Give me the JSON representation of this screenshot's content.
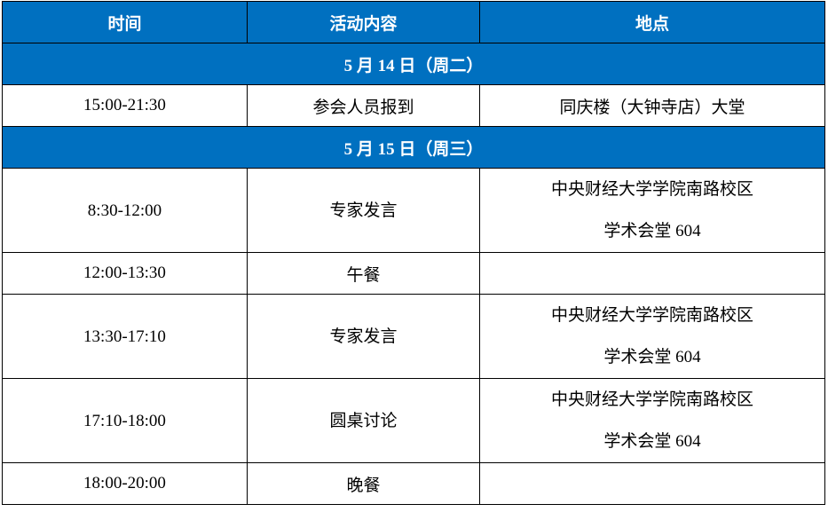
{
  "header": [
    "时间",
    "活动内容",
    "地点"
  ],
  "sections": [
    {
      "date": "5 月 14 日（周二）",
      "rows": [
        {
          "time": "15:00-21:30",
          "activity": "参会人员报到",
          "location": [
            "同庆楼（大钟寺店）大堂"
          ]
        }
      ]
    },
    {
      "date": "5 月 15 日（周三）",
      "rows": [
        {
          "time": "8:30-12:00",
          "activity": "专家发言",
          "location": [
            "中央财经大学学院南路校区",
            "学术会堂 604"
          ]
        },
        {
          "time": "12:00-13:30",
          "activity": "午餐",
          "location": []
        },
        {
          "time": "13:30-17:10",
          "activity": "专家发言",
          "location": [
            "中央财经大学学院南路校区",
            "学术会堂 604"
          ]
        },
        {
          "time": "17:10-18:00",
          "activity": "圆桌讨论",
          "location": [
            "中央财经大学学院南路校区",
            "学术会堂 604"
          ]
        },
        {
          "time": "18:00-20:00",
          "activity": "晚餐",
          "location": []
        }
      ]
    }
  ],
  "colors": {
    "header_bg": "#0070C0",
    "header_text": "#FFFFFF"
  }
}
